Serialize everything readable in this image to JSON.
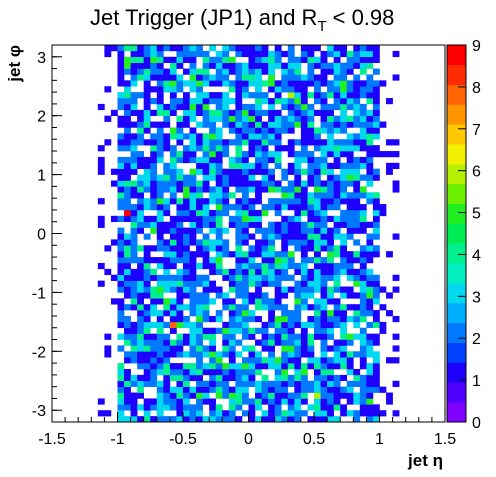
{
  "chart_data": {
    "type": "heatmap",
    "title": "Jet Trigger (JP1) and R",
    "title_subscript": "T",
    "title_suffix": "< 0.98",
    "xlabel": "jet η",
    "ylabel": "jet φ",
    "xlim": [
      -1.5,
      1.5
    ],
    "ylim": [
      -3.2,
      3.2
    ],
    "x_ticks": [
      -1.5,
      -1,
      -0.5,
      0,
      0.5,
      1,
      1.5
    ],
    "x_tick_labels": [
      "-1.5",
      "-1",
      "-0.5",
      "0",
      "0.5",
      "1",
      "1.5"
    ],
    "y_ticks": [
      -3,
      -2,
      -1,
      0,
      1,
      2,
      3
    ],
    "y_tick_labels": [
      "-3",
      "-2",
      "-1",
      "0",
      "1",
      "2",
      "3"
    ],
    "z_range": [
      0,
      9
    ],
    "z_ticks": [
      0,
      1,
      2,
      3,
      4,
      5,
      6,
      7,
      8,
      9
    ],
    "z_tick_labels": [
      "0",
      "1",
      "2",
      "3",
      "4",
      "5",
      "6",
      "7",
      "8",
      "9"
    ],
    "bins": {
      "nx": 60,
      "ny": 64,
      "x_range": [
        -1.5,
        1.5
      ],
      "y_range": [
        -3.2,
        3.2
      ],
      "occupied_eta_range": [
        -1.0,
        1.0
      ],
      "typical_count": 2,
      "max_count": 9
    },
    "hot_cells": [
      {
        "x": -0.9,
        "y": 0.3,
        "z": 9
      },
      {
        "x": -0.55,
        "y": -1.6,
        "z": 8
      },
      {
        "x": 0.5,
        "y": -2.75,
        "z": 6
      },
      {
        "x": 0.3,
        "y": 2.3,
        "z": 6
      }
    ],
    "palette": [
      "#7f00ff",
      "#4f00ff",
      "#1e00ff",
      "#0041ff",
      "#0078ff",
      "#00aeff",
      "#00d8ef",
      "#00eec0",
      "#00f090",
      "#00ee55",
      "#20f020",
      "#6cf000",
      "#b4f000",
      "#f0f000",
      "#ffc800",
      "#ff9600",
      "#ff6400",
      "#ff2a00",
      "#ff0000"
    ],
    "grid": false,
    "legend": "none"
  }
}
